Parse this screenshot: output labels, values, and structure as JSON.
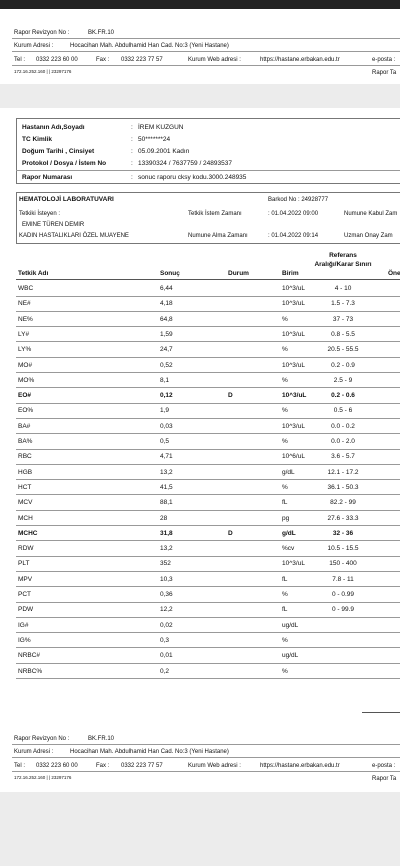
{
  "header": {
    "rev_label": "Rapor Revizyon No :",
    "rev": "BK.FR.10",
    "addr_label": "Kurum Adresi :",
    "addr": "Hocacihan Mah. Abdulhamid Han Cad. No:3 (Yeni Hastane)",
    "tel_label": "Tel :",
    "tel": "0332 223 60 00",
    "fax_label": "Fax :",
    "fax": "0332 223 77 57",
    "web_label": "Kurum Web adresi :",
    "web": "https://hastane.erbakan.edu.tr",
    "email_label": "e-posta :",
    "ip": "172.16.252.160 |  |  23297176",
    "cut": "Rapor Ta"
  },
  "footer": {
    "rev_label": "Rapor Revizyon No :",
    "rev": "BK.FR.10",
    "addr_label": "Kurum Adresi :",
    "addr": "Hocacihan Mah. Abdulhamid Han Cad. No:3 (Yeni Hastane)",
    "tel_label": "Tel :",
    "tel": "0332 223 60 00",
    "fax_label": "Fax :",
    "fax": "0332 223 77 57",
    "web_label": "Kurum Web adresi :",
    "web": "https://hastane.erbakan.edu.tr",
    "email_label": "e-posta :",
    "ip": "172.16.252.160 |  |  23297176",
    "cut": "Rapor Ta"
  },
  "patient": [
    {
      "label": "Hastanın Adı,Soyadı",
      "value": "İREM KUZGUN"
    },
    {
      "label": "TC Kimlik",
      "value": "50*******24"
    },
    {
      "label": "Doğum Tarihi , Cinsiyet",
      "value": "05.09.2001        Kadın"
    },
    {
      "label": "Protokol / Dosya / İstem No",
      "value": "13390324 / 7637759 / 24893537"
    },
    {
      "label": "Rapor Numarası",
      "value": "sonuc raporu cksy kodu.3000.248935"
    }
  ],
  "lab": {
    "title": "HEMATOLOJİ LABORATUVARI",
    "barcode": "Barkod No : 24928777",
    "requester_label": "Tetkiki İsteyen :",
    "request_time_label": "Tetkik İstem Zamanı",
    "request_time": ": 01.04.2022  09:00",
    "accept_label": "Numune Kabul Zam",
    "doctor": "EMINE TÜREN DEMIR",
    "department": "KADIN HASTALIKLARI ÖZEL MUAYENE",
    "sample_time_label": "Numune Alma Zamanı",
    "sample_time": ": 01.04.2022  09:14",
    "approve_label": "Uzman Onay Zam"
  },
  "table": {
    "columns": [
      "Tetkik Adı",
      "Sonuç",
      "Durum",
      "Birim",
      "Referans Aralığı/Karar Sınırı",
      "Öne"
    ],
    "rows": [
      {
        "name": "WBC",
        "result": "6,44",
        "unit": "10^3/uL",
        "ref": "4 - 10"
      },
      {
        "name": "NE#",
        "result": "4,18",
        "unit": "10^3/uL",
        "ref": "1.5 - 7.3"
      },
      {
        "name": "NE%",
        "result": "64,8",
        "unit": "%",
        "ref": "37 - 73"
      },
      {
        "name": "LY#",
        "result": "1,59",
        "unit": "10^3/uL",
        "ref": "0.8 - 5.5"
      },
      {
        "name": "LY%",
        "result": "24,7",
        "unit": "%",
        "ref": "20.5 - 55.5"
      },
      {
        "name": "MO#",
        "result": "0,52",
        "unit": "10^3/uL",
        "ref": "0.2 - 0.9"
      },
      {
        "name": "MO%",
        "result": "8,1",
        "unit": "%",
        "ref": "2.5 - 9"
      },
      {
        "name": "EO#",
        "result": "0,12",
        "status": "D",
        "unit": "10^3/uL",
        "ref": "0.2 - 0.6"
      },
      {
        "name": "EO%",
        "result": "1,9",
        "unit": "%",
        "ref": "0.5 - 6"
      },
      {
        "name": "BA#",
        "result": "0,03",
        "unit": "10^3/uL",
        "ref": "0.0 - 0.2"
      },
      {
        "name": "BA%",
        "result": "0,5",
        "unit": "%",
        "ref": "0.0 - 2.0"
      },
      {
        "name": "RBC",
        "result": "4,71",
        "unit": "10^6/uL",
        "ref": "3.6 - 5.7"
      },
      {
        "name": "HGB",
        "result": "13,2",
        "unit": "g/dL",
        "ref": "12.1 - 17.2"
      },
      {
        "name": "HCT",
        "result": "41,5",
        "unit": "%",
        "ref": "36.1 - 50.3"
      },
      {
        "name": "MCV",
        "result": "88,1",
        "unit": "fL",
        "ref": "82.2 - 99"
      },
      {
        "name": "MCH",
        "result": "28",
        "unit": "pg",
        "ref": "27.6 - 33.3"
      },
      {
        "name": "MCHC",
        "result": "31,8",
        "status": "D",
        "unit": "g/dL",
        "ref": "32 - 36"
      },
      {
        "name": "RDW",
        "result": "13,2",
        "unit": "%cv",
        "ref": "10.5 - 15.5"
      },
      {
        "name": "PLT",
        "result": "352",
        "unit": "10^3/uL",
        "ref": "150 - 400"
      },
      {
        "name": "MPV",
        "result": "10,3",
        "unit": "fL",
        "ref": "7.8 - 11"
      },
      {
        "name": "PCT",
        "result": "0,36",
        "unit": "%",
        "ref": "0 - 0.99"
      },
      {
        "name": "PDW",
        "result": "12,2",
        "unit": "fL",
        "ref": "0 - 99.9"
      },
      {
        "name": "IG#",
        "result": "0,02",
        "unit": "ug/dL"
      },
      {
        "name": "IG%",
        "result": "0,3",
        "unit": "%"
      },
      {
        "name": "NRBC#",
        "result": "0,01",
        "unit": "ug/dL"
      },
      {
        "name": "NRBC%",
        "result": "0,2",
        "unit": "%"
      }
    ]
  }
}
